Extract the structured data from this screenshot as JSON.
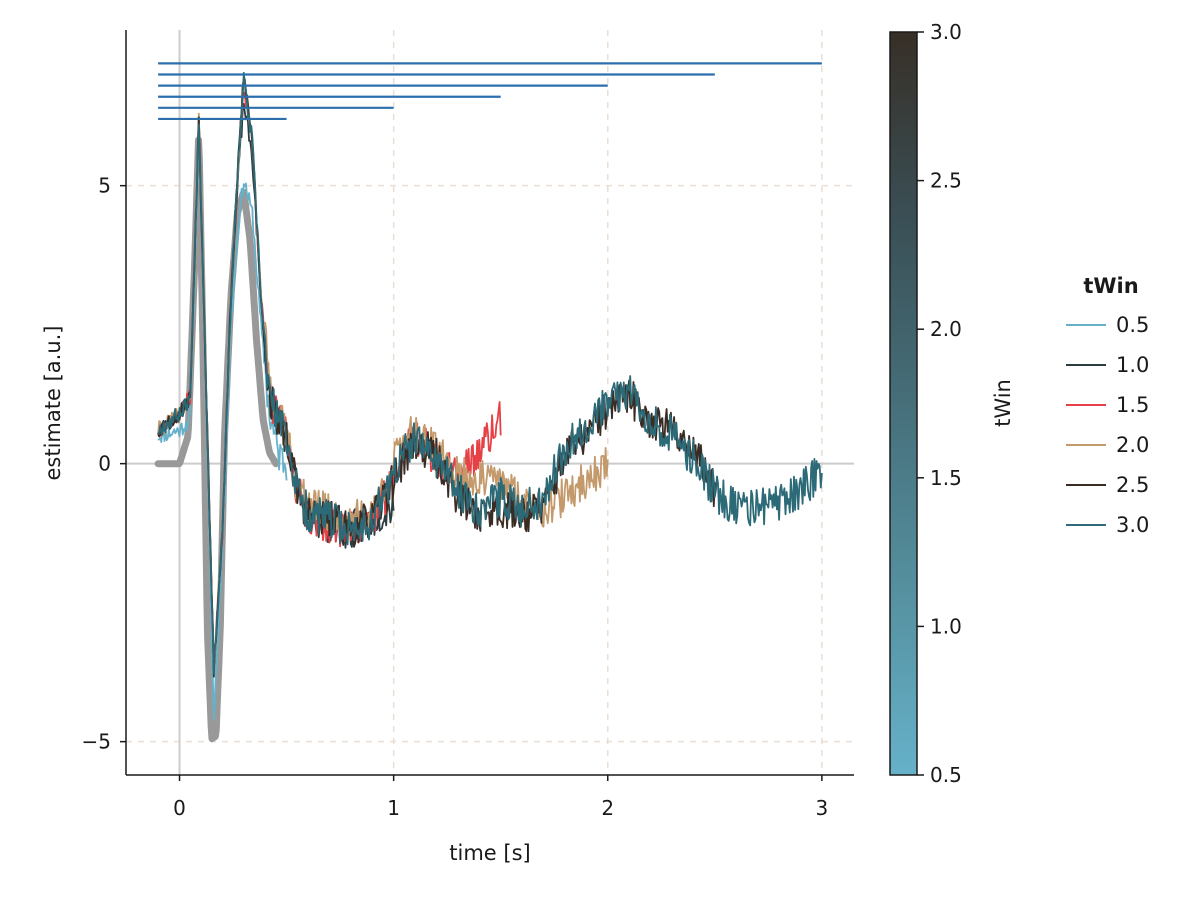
{
  "chart_data": {
    "type": "line",
    "xlabel": "time [s]",
    "ylabel": "estimate [a.u.]",
    "xlim": [
      -0.25,
      3.15
    ],
    "ylim": [
      -5.6,
      7.8
    ],
    "xticks": [
      0,
      1,
      2,
      3
    ],
    "xtick_labels": [
      "0",
      "1",
      "2",
      "3"
    ],
    "yticks": [
      -5,
      0,
      5
    ],
    "ytick_labels": [
      "−5",
      "0",
      "5"
    ],
    "grid": true,
    "reference_lines": {
      "x": 0,
      "y": 0
    },
    "ground_truth": {
      "color": "#999999",
      "x": [
        -0.1,
        -0.05,
        0,
        0.04,
        0.07,
        0.09,
        0.11,
        0.13,
        0.15,
        0.17,
        0.19,
        0.21,
        0.24,
        0.27,
        0.3,
        0.33,
        0.36,
        0.39,
        0.42,
        0.45
      ],
      "y": [
        0,
        0,
        0,
        0.5,
        3.5,
        6.0,
        2.0,
        -3.0,
        -4.95,
        -4.9,
        -3.0,
        0.5,
        3.0,
        4.5,
        4.9,
        4.0,
        2.2,
        0.8,
        0.2,
        0
      ]
    },
    "window_bars": [
      {
        "twin": 0.5,
        "x": [
          -0.1,
          0.5
        ],
        "y": 6.2
      },
      {
        "twin": 1.0,
        "x": [
          -0.1,
          1.0
        ],
        "y": 6.4
      },
      {
        "twin": 1.5,
        "x": [
          -0.1,
          1.5
        ],
        "y": 6.6
      },
      {
        "twin": 2.0,
        "x": [
          -0.1,
          2.0
        ],
        "y": 6.8
      },
      {
        "twin": 2.5,
        "x": [
          -0.1,
          2.5
        ],
        "y": 7.0
      },
      {
        "twin": 3.0,
        "x": [
          -0.1,
          3.0
        ],
        "y": 7.2
      }
    ],
    "window_bar_color": "#2c6fad",
    "series": [
      {
        "name": "0.5",
        "color": "#66b1c9",
        "tmax": 0.5,
        "seed": 11,
        "x": [
          -0.1,
          0,
          0.05,
          0.09,
          0.12,
          0.16,
          0.2,
          0.24,
          0.28,
          0.3,
          0.34,
          0.38,
          0.42,
          0.46,
          0.5
        ],
        "y": [
          0.5,
          0.6,
          0.8,
          6.0,
          2.0,
          -4.6,
          -1.5,
          2.5,
          4.5,
          5.1,
          4.5,
          2.5,
          0.9,
          0.2,
          0
        ]
      },
      {
        "name": "1.0",
        "color": "#2b3d41",
        "tmax": 1.0,
        "seed": 23,
        "x": [
          -0.1,
          0,
          0.05,
          0.09,
          0.12,
          0.16,
          0.2,
          0.24,
          0.28,
          0.3,
          0.34,
          0.38,
          0.42,
          0.46,
          0.5,
          0.55,
          0.6,
          0.7,
          0.8,
          0.9,
          1.0
        ],
        "y": [
          0.6,
          0.9,
          1.2,
          6.2,
          2.0,
          -3.7,
          -1.2,
          3.0,
          5.5,
          6.5,
          5.5,
          3.0,
          1.2,
          0.8,
          0.5,
          -0.5,
          -0.9,
          -1.1,
          -1.2,
          -1.0,
          -0.7
        ]
      },
      {
        "name": "1.5",
        "color": "#e64146",
        "tmax": 1.5,
        "seed": 37,
        "x": [
          -0.1,
          0,
          0.05,
          0.09,
          0.12,
          0.16,
          0.2,
          0.24,
          0.28,
          0.3,
          0.34,
          0.38,
          0.42,
          0.46,
          0.5,
          0.55,
          0.6,
          0.7,
          0.8,
          0.9,
          1.0,
          1.05,
          1.1,
          1.2,
          1.3,
          1.35,
          1.4,
          1.45,
          1.5
        ],
        "y": [
          0.6,
          0.9,
          1.2,
          6.2,
          2.0,
          -3.7,
          -1.2,
          3.0,
          5.8,
          6.8,
          5.8,
          3.0,
          1.2,
          0.8,
          0.5,
          -0.5,
          -0.9,
          -1.1,
          -1.2,
          -1.0,
          -0.3,
          0.3,
          0.5,
          0.1,
          -0.3,
          0,
          0.2,
          0.5,
          0.8
        ]
      },
      {
        "name": "2.0",
        "color": "#c49a6c",
        "tmax": 2.0,
        "seed": 41,
        "x": [
          -0.1,
          0,
          0.05,
          0.09,
          0.12,
          0.16,
          0.2,
          0.24,
          0.28,
          0.3,
          0.34,
          0.38,
          0.42,
          0.46,
          0.5,
          0.55,
          0.6,
          0.7,
          0.8,
          0.9,
          1.0,
          1.05,
          1.1,
          1.2,
          1.3,
          1.4,
          1.5,
          1.6,
          1.7,
          1.8,
          1.9,
          2.0
        ],
        "y": [
          0.6,
          0.9,
          1.2,
          6.2,
          2.0,
          -3.7,
          -1.2,
          3.0,
          5.8,
          7.0,
          5.8,
          3.0,
          1.5,
          0.8,
          0.6,
          -0.5,
          -0.7,
          -0.9,
          -1.0,
          -0.9,
          0,
          0.5,
          0.6,
          0.2,
          -0.2,
          -0.3,
          -0.3,
          -0.7,
          -0.8,
          -0.6,
          -0.3,
          0
        ]
      },
      {
        "name": "2.5",
        "color": "#3a2c24",
        "tmax": 2.5,
        "seed": 53,
        "x": [
          -0.1,
          0,
          0.05,
          0.09,
          0.12,
          0.16,
          0.2,
          0.24,
          0.28,
          0.3,
          0.34,
          0.38,
          0.42,
          0.46,
          0.5,
          0.55,
          0.6,
          0.7,
          0.8,
          0.9,
          1.0,
          1.05,
          1.1,
          1.2,
          1.3,
          1.4,
          1.5,
          1.6,
          1.7,
          1.8,
          1.9,
          2.0,
          2.1,
          2.2,
          2.3,
          2.4,
          2.5
        ],
        "y": [
          0.6,
          0.9,
          1.2,
          6.2,
          2.0,
          -3.7,
          -1.2,
          3.0,
          5.8,
          7.0,
          5.8,
          3.0,
          1.2,
          0.8,
          0.5,
          -0.5,
          -0.9,
          -1.0,
          -1.2,
          -1.0,
          -0.3,
          0.1,
          0.4,
          0.1,
          -0.6,
          -0.9,
          -0.8,
          -0.9,
          -0.8,
          0.2,
          0.5,
          1.0,
          1.2,
          0.8,
          0.6,
          0.3,
          -0.5
        ]
      },
      {
        "name": "3.0",
        "color": "#2d6a78",
        "tmax": 3.0,
        "seed": 67,
        "x": [
          -0.1,
          0,
          0.05,
          0.09,
          0.12,
          0.16,
          0.2,
          0.24,
          0.28,
          0.3,
          0.34,
          0.38,
          0.42,
          0.46,
          0.5,
          0.55,
          0.6,
          0.7,
          0.8,
          0.9,
          1.0,
          1.05,
          1.1,
          1.2,
          1.3,
          1.4,
          1.5,
          1.6,
          1.7,
          1.8,
          1.9,
          2.0,
          2.1,
          2.2,
          2.3,
          2.4,
          2.5,
          2.6,
          2.7,
          2.8,
          2.9,
          3.0
        ],
        "y": [
          0.6,
          0.9,
          1.2,
          6.2,
          2.0,
          -3.7,
          -1.2,
          3.0,
          5.8,
          6.9,
          5.8,
          3.0,
          1.2,
          0.8,
          0.5,
          -0.5,
          -0.9,
          -1.0,
          -1.2,
          -1.0,
          -0.2,
          0.2,
          0.4,
          0.1,
          -0.5,
          -0.8,
          -0.6,
          -0.8,
          -0.6,
          0.3,
          0.7,
          1.1,
          1.3,
          0.8,
          0.5,
          0.1,
          -0.5,
          -0.8,
          -0.8,
          -0.7,
          -0.5,
          -0.1
        ]
      }
    ],
    "colorbar": {
      "label": "tWin",
      "range": [
        0.5,
        3.0
      ],
      "ticks": [
        0.5,
        1.0,
        1.5,
        2.0,
        2.5,
        3.0
      ],
      "tick_labels": [
        "0.5",
        "1.0",
        "1.5",
        "2.0",
        "2.5",
        "3.0"
      ],
      "colors": [
        "#66b1c9",
        "#55909f",
        "#466f7a",
        "#3a4f55",
        "#372f27"
      ]
    },
    "legend": {
      "title": "tWin",
      "placement": "right",
      "entries": [
        "0.5",
        "1.0",
        "1.5",
        "2.0",
        "2.5",
        "3.0"
      ]
    }
  }
}
